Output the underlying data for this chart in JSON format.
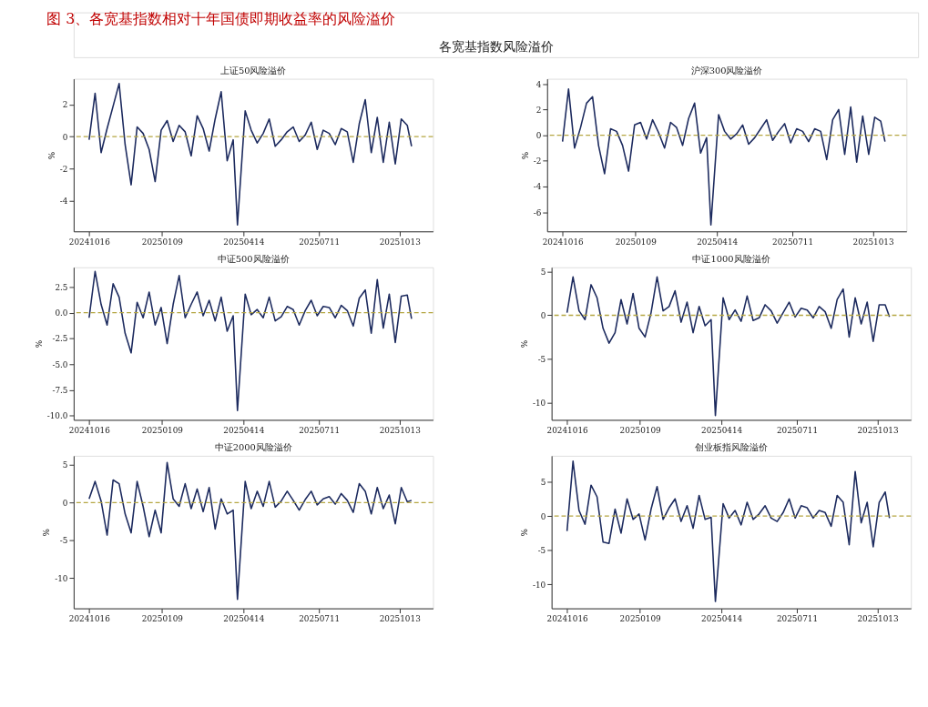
{
  "chart_data": [
    {
      "type": "line",
      "title": "上证50风险溢价",
      "ylabel": "%",
      "grid": false,
      "annotations": [
        "图 3、各宽基指数相对十年国债即期收益率的风险溢价",
        "各宽基指数风险溢价"
      ],
      "x": [
        "2024-10-16",
        "2024-10-23",
        "2024-10-30",
        "2024-11-06",
        "2024-11-13",
        "2024-11-20",
        "2024-11-27",
        "2024-12-04",
        "2024-12-11",
        "2024-12-18",
        "2024-12-25",
        "2025-01-01",
        "2025-01-08",
        "2025-01-15",
        "2025-01-22",
        "2025-01-29",
        "2025-02-05",
        "2025-02-12",
        "2025-02-19",
        "2025-02-26",
        "2025-03-05",
        "2025-03-12",
        "2025-03-19",
        "2025-03-26",
        "2025-04-02",
        "2025-04-07",
        "2025-04-16",
        "2025-04-23",
        "2025-04-30",
        "2025-05-07",
        "2025-05-14",
        "2025-05-21",
        "2025-05-28",
        "2025-06-04",
        "2025-06-11",
        "2025-06-18",
        "2025-06-25",
        "2025-07-02",
        "2025-07-09",
        "2025-07-16",
        "2025-07-23",
        "2025-07-30",
        "2025-08-06",
        "2025-08-13",
        "2025-08-20",
        "2025-08-27",
        "2025-09-03",
        "2025-09-10",
        "2025-09-17",
        "2025-09-24",
        "2025-10-01",
        "2025-10-08",
        "2025-10-15",
        "2025-10-22",
        "2025-10-27"
      ],
      "series": [
        {
          "color": "#1c2a5e",
          "values": [
            -0.2,
            2.7,
            -1.0,
            0.5,
            1.9,
            3.3,
            -0.5,
            -3.0,
            0.6,
            0.2,
            -0.8,
            -2.8,
            0.4,
            1.0,
            -0.3,
            0.7,
            0.3,
            -1.2,
            1.3,
            0.5,
            -0.9,
            1.1,
            2.8,
            -1.5,
            -0.2,
            -5.5,
            1.6,
            0.4,
            -0.4,
            0.2,
            1.1,
            -0.6,
            -0.2,
            0.3,
            0.6,
            -0.3,
            0.1,
            0.9,
            -0.8,
            0.4,
            0.2,
            -0.5,
            0.5,
            0.3,
            -1.6,
            0.8,
            2.3,
            -1.0,
            1.2,
            -1.6,
            0.9,
            -1.7,
            1.1,
            0.7,
            -0.6
          ]
        }
      ],
      "ref_lines": [
        {
          "axis": "y",
          "value": 0,
          "color": "#b5a642",
          "line_style": "dashed"
        }
      ],
      "xlim": [
        "2024-09-28",
        "2025-11-21"
      ],
      "xticks": [
        {
          "value": "2024-10-16",
          "label": "20241016"
        },
        {
          "value": "2025-01-09",
          "label": "20250109"
        },
        {
          "value": "2025-04-14",
          "label": "20250414"
        },
        {
          "value": "2025-07-11",
          "label": "20250711"
        },
        {
          "value": "2025-10-13",
          "label": "20251013"
        }
      ],
      "ylim": [
        -5.9,
        3.6
      ],
      "yticks": [
        -4,
        -2,
        0,
        2
      ]
    },
    {
      "type": "line",
      "title": "沪深300风险溢价",
      "ylabel": "%",
      "grid": false,
      "x": [
        "2024-10-16",
        "2024-10-23",
        "2024-10-30",
        "2024-11-06",
        "2024-11-13",
        "2024-11-20",
        "2024-11-27",
        "2024-12-04",
        "2024-12-11",
        "2024-12-18",
        "2024-12-25",
        "2025-01-01",
        "2025-01-08",
        "2025-01-15",
        "2025-01-22",
        "2025-01-29",
        "2025-02-05",
        "2025-02-12",
        "2025-02-19",
        "2025-02-26",
        "2025-03-05",
        "2025-03-12",
        "2025-03-19",
        "2025-03-26",
        "2025-04-02",
        "2025-04-07",
        "2025-04-16",
        "2025-04-23",
        "2025-04-30",
        "2025-05-07",
        "2025-05-14",
        "2025-05-21",
        "2025-05-28",
        "2025-06-04",
        "2025-06-11",
        "2025-06-18",
        "2025-06-25",
        "2025-07-02",
        "2025-07-09",
        "2025-07-16",
        "2025-07-23",
        "2025-07-30",
        "2025-08-06",
        "2025-08-13",
        "2025-08-20",
        "2025-08-27",
        "2025-09-03",
        "2025-09-10",
        "2025-09-17",
        "2025-09-24",
        "2025-10-01",
        "2025-10-08",
        "2025-10-15",
        "2025-10-22",
        "2025-10-27"
      ],
      "series": [
        {
          "color": "#1c2a5e",
          "values": [
            -0.5,
            3.6,
            -1.0,
            0.6,
            2.5,
            3.0,
            -0.8,
            -3.0,
            0.5,
            0.3,
            -0.8,
            -2.8,
            0.8,
            1.0,
            -0.3,
            1.2,
            0.2,
            -1.0,
            1.0,
            0.6,
            -0.8,
            1.3,
            2.5,
            -1.4,
            -0.2,
            -7.0,
            1.6,
            0.3,
            -0.3,
            0.1,
            0.8,
            -0.7,
            -0.2,
            0.5,
            1.2,
            -0.4,
            0.3,
            0.9,
            -0.6,
            0.5,
            0.3,
            -0.5,
            0.5,
            0.3,
            -1.9,
            1.2,
            2.0,
            -1.5,
            2.2,
            -2.1,
            1.5,
            -1.5,
            1.4,
            1.1,
            -0.5
          ]
        }
      ],
      "ref_lines": [
        {
          "axis": "y",
          "value": 0,
          "color": "#b5a642",
          "line_style": "dashed"
        }
      ],
      "xlim": [
        "2024-09-28",
        "2025-11-21"
      ],
      "xticks": [
        {
          "value": "2024-10-16",
          "label": "20241016"
        },
        {
          "value": "2025-01-09",
          "label": "20250109"
        },
        {
          "value": "2025-04-14",
          "label": "20250414"
        },
        {
          "value": "2025-07-11",
          "label": "20250711"
        },
        {
          "value": "2025-10-13",
          "label": "20251013"
        }
      ],
      "ylim": [
        -7.5,
        4.4
      ],
      "yticks": [
        -6,
        -4,
        -2,
        0,
        2,
        4
      ]
    },
    {
      "type": "line",
      "title": "中证500风险溢价",
      "ylabel": "%",
      "grid": false,
      "x": [
        "2024-10-16",
        "2024-10-23",
        "2024-10-30",
        "2024-11-06",
        "2024-11-13",
        "2024-11-20",
        "2024-11-27",
        "2024-12-04",
        "2024-12-11",
        "2024-12-18",
        "2024-12-25",
        "2025-01-01",
        "2025-01-08",
        "2025-01-15",
        "2025-01-22",
        "2025-01-29",
        "2025-02-05",
        "2025-02-12",
        "2025-02-19",
        "2025-02-26",
        "2025-03-05",
        "2025-03-12",
        "2025-03-19",
        "2025-03-26",
        "2025-04-02",
        "2025-04-07",
        "2025-04-16",
        "2025-04-23",
        "2025-04-30",
        "2025-05-07",
        "2025-05-14",
        "2025-05-21",
        "2025-05-28",
        "2025-06-04",
        "2025-06-11",
        "2025-06-18",
        "2025-06-25",
        "2025-07-02",
        "2025-07-09",
        "2025-07-16",
        "2025-07-23",
        "2025-07-30",
        "2025-08-06",
        "2025-08-13",
        "2025-08-20",
        "2025-08-27",
        "2025-09-03",
        "2025-09-10",
        "2025-09-17",
        "2025-09-24",
        "2025-10-01",
        "2025-10-08",
        "2025-10-15",
        "2025-10-22",
        "2025-10-27"
      ],
      "series": [
        {
          "color": "#1c2a5e",
          "values": [
            -0.5,
            4.0,
            0.8,
            -1.2,
            2.8,
            1.5,
            -2.0,
            -3.9,
            1.0,
            -0.5,
            2.0,
            -1.2,
            0.5,
            -3.0,
            0.8,
            3.6,
            -0.5,
            0.8,
            2.0,
            -0.3,
            1.2,
            -0.8,
            1.5,
            -1.8,
            -0.3,
            -9.5,
            1.8,
            -0.2,
            0.3,
            -0.5,
            1.5,
            -0.8,
            -0.4,
            0.6,
            0.3,
            -1.2,
            0.2,
            1.2,
            -0.3,
            0.6,
            0.5,
            -0.5,
            0.7,
            0.2,
            -1.3,
            1.4,
            2.2,
            -2.0,
            3.2,
            -1.5,
            1.8,
            -2.9,
            1.6,
            1.7,
            -0.6
          ]
        }
      ],
      "ref_lines": [
        {
          "axis": "y",
          "value": 0,
          "color": "#b5a642",
          "line_style": "dashed"
        }
      ],
      "xlim": [
        "2024-09-28",
        "2025-11-21"
      ],
      "xticks": [
        {
          "value": "2024-10-16",
          "label": "20241016"
        },
        {
          "value": "2025-01-09",
          "label": "20250109"
        },
        {
          "value": "2025-04-14",
          "label": "20250414"
        },
        {
          "value": "2025-07-11",
          "label": "20250711"
        },
        {
          "value": "2025-10-13",
          "label": "20251013"
        }
      ],
      "ylim": [
        -10.4,
        4.4
      ],
      "yticks": [
        {
          "value": -10,
          "label": "-10.0"
        },
        {
          "value": -7.5,
          "label": "-7.5"
        },
        {
          "value": -5,
          "label": "-5.0"
        },
        {
          "value": -2.5,
          "label": "-2.5"
        },
        {
          "value": 0,
          "label": "0.0"
        },
        {
          "value": 2.5,
          "label": "2.5"
        }
      ]
    },
    {
      "type": "line",
      "title": "中证1000风险溢价",
      "ylabel": "%",
      "grid": false,
      "x": [
        "2024-10-16",
        "2024-10-23",
        "2024-10-30",
        "2024-11-06",
        "2024-11-13",
        "2024-11-20",
        "2024-11-27",
        "2024-12-04",
        "2024-12-11",
        "2024-12-18",
        "2024-12-25",
        "2025-01-01",
        "2025-01-08",
        "2025-01-15",
        "2025-01-22",
        "2025-01-29",
        "2025-02-05",
        "2025-02-12",
        "2025-02-19",
        "2025-02-26",
        "2025-03-05",
        "2025-03-12",
        "2025-03-19",
        "2025-03-26",
        "2025-04-02",
        "2025-04-07",
        "2025-04-16",
        "2025-04-23",
        "2025-04-30",
        "2025-05-07",
        "2025-05-14",
        "2025-05-21",
        "2025-05-28",
        "2025-06-04",
        "2025-06-11",
        "2025-06-18",
        "2025-06-25",
        "2025-07-02",
        "2025-07-09",
        "2025-07-16",
        "2025-07-23",
        "2025-07-30",
        "2025-08-06",
        "2025-08-13",
        "2025-08-20",
        "2025-08-27",
        "2025-09-03",
        "2025-09-10",
        "2025-09-17",
        "2025-09-24",
        "2025-10-01",
        "2025-10-08",
        "2025-10-15",
        "2025-10-22",
        "2025-10-27"
      ],
      "series": [
        {
          "color": "#1c2a5e",
          "values": [
            0.3,
            4.4,
            0.5,
            -0.5,
            3.5,
            2.0,
            -1.5,
            -3.2,
            -2.0,
            1.8,
            -1.0,
            2.5,
            -1.5,
            -2.5,
            0.3,
            4.4,
            0.5,
            1.0,
            2.8,
            -0.8,
            1.5,
            -2.0,
            1.0,
            -1.2,
            -0.5,
            -11.5,
            2.0,
            -0.5,
            0.6,
            -0.7,
            2.2,
            -0.6,
            -0.3,
            1.2,
            0.5,
            -0.9,
            0.3,
            1.5,
            -0.2,
            0.8,
            0.6,
            -0.3,
            1.0,
            0.4,
            -1.5,
            1.8,
            3.0,
            -2.5,
            2.0,
            -1.0,
            1.5,
            -3.0,
            1.2,
            1.2,
            -0.2
          ]
        }
      ],
      "ref_lines": [
        {
          "axis": "y",
          "value": 0,
          "color": "#b5a642",
          "line_style": "dashed"
        }
      ],
      "xlim": [
        "2024-09-28",
        "2025-11-21"
      ],
      "xticks": [
        {
          "value": "2024-10-16",
          "label": "20241016"
        },
        {
          "value": "2025-01-09",
          "label": "20250109"
        },
        {
          "value": "2025-04-14",
          "label": "20250414"
        },
        {
          "value": "2025-07-11",
          "label": "20250711"
        },
        {
          "value": "2025-10-13",
          "label": "20251013"
        }
      ],
      "ylim": [
        -12,
        5.5
      ],
      "yticks": [
        -10,
        -5,
        0,
        5
      ]
    },
    {
      "type": "line",
      "title": "中证2000风险溢价",
      "ylabel": "%",
      "grid": false,
      "x": [
        "2024-10-16",
        "2024-10-23",
        "2024-10-30",
        "2024-11-06",
        "2024-11-13",
        "2024-11-20",
        "2024-11-27",
        "2024-12-04",
        "2024-12-11",
        "2024-12-18",
        "2024-12-25",
        "2025-01-01",
        "2025-01-08",
        "2025-01-15",
        "2025-01-22",
        "2025-01-29",
        "2025-02-05",
        "2025-02-12",
        "2025-02-19",
        "2025-02-26",
        "2025-03-05",
        "2025-03-12",
        "2025-03-19",
        "2025-03-26",
        "2025-04-02",
        "2025-04-07",
        "2025-04-16",
        "2025-04-23",
        "2025-04-30",
        "2025-05-07",
        "2025-05-14",
        "2025-05-21",
        "2025-05-28",
        "2025-06-04",
        "2025-06-11",
        "2025-06-18",
        "2025-06-25",
        "2025-07-02",
        "2025-07-09",
        "2025-07-16",
        "2025-07-23",
        "2025-07-30",
        "2025-08-06",
        "2025-08-13",
        "2025-08-20",
        "2025-08-27",
        "2025-09-03",
        "2025-09-10",
        "2025-09-17",
        "2025-09-24",
        "2025-10-01",
        "2025-10-08",
        "2025-10-15",
        "2025-10-22",
        "2025-10-27"
      ],
      "series": [
        {
          "color": "#1c2a5e",
          "values": [
            0.5,
            2.8,
            0.2,
            -4.3,
            3.0,
            2.5,
            -1.5,
            -4.0,
            2.8,
            -0.5,
            -4.5,
            -1.0,
            -4.0,
            5.3,
            0.5,
            -0.5,
            2.5,
            -0.8,
            1.8,
            -1.2,
            2.0,
            -3.5,
            0.5,
            -1.5,
            -1.0,
            -12.8,
            2.8,
            -0.8,
            1.5,
            -0.5,
            2.8,
            -0.6,
            0.2,
            1.5,
            0.3,
            -1.0,
            0.4,
            1.5,
            -0.3,
            0.5,
            0.8,
            -0.2,
            1.2,
            0.3,
            -1.3,
            2.5,
            1.5,
            -1.5,
            2.0,
            -0.8,
            1.0,
            -2.8,
            2.0,
            0.1,
            0.3
          ]
        }
      ],
      "ref_lines": [
        {
          "axis": "y",
          "value": 0,
          "color": "#b5a642",
          "line_style": "dashed"
        }
      ],
      "xlim": [
        "2024-09-28",
        "2025-11-21"
      ],
      "xticks": [
        {
          "value": "2024-10-16",
          "label": "20241016"
        },
        {
          "value": "2025-01-09",
          "label": "20250109"
        },
        {
          "value": "2025-04-14",
          "label": "20250414"
        },
        {
          "value": "2025-07-11",
          "label": "20250711"
        },
        {
          "value": "2025-10-13",
          "label": "20251013"
        }
      ],
      "ylim": [
        -14,
        6.2
      ],
      "yticks": [
        -10,
        -5,
        0,
        5
      ]
    },
    {
      "type": "line",
      "title": "创业板指风险溢价",
      "ylabel": "%",
      "grid": false,
      "x": [
        "2024-10-16",
        "2024-10-23",
        "2024-10-30",
        "2024-11-06",
        "2024-11-13",
        "2024-11-20",
        "2024-11-27",
        "2024-12-04",
        "2024-12-11",
        "2024-12-18",
        "2024-12-25",
        "2025-01-01",
        "2025-01-08",
        "2025-01-15",
        "2025-01-22",
        "2025-01-29",
        "2025-02-05",
        "2025-02-12",
        "2025-02-19",
        "2025-02-26",
        "2025-03-05",
        "2025-03-12",
        "2025-03-19",
        "2025-03-26",
        "2025-04-02",
        "2025-04-07",
        "2025-04-16",
        "2025-04-23",
        "2025-04-30",
        "2025-05-07",
        "2025-05-14",
        "2025-05-21",
        "2025-05-28",
        "2025-06-04",
        "2025-06-11",
        "2025-06-18",
        "2025-06-25",
        "2025-07-02",
        "2025-07-09",
        "2025-07-16",
        "2025-07-23",
        "2025-07-30",
        "2025-08-06",
        "2025-08-13",
        "2025-08-20",
        "2025-08-27",
        "2025-09-03",
        "2025-09-10",
        "2025-09-17",
        "2025-09-24",
        "2025-10-01",
        "2025-10-08",
        "2025-10-15",
        "2025-10-22",
        "2025-10-27"
      ],
      "series": [
        {
          "color": "#1c2a5e",
          "values": [
            -2.2,
            8.0,
            0.8,
            -1.2,
            4.5,
            2.8,
            -3.8,
            -4.0,
            1.0,
            -2.5,
            2.5,
            -0.5,
            0.3,
            -3.5,
            1.0,
            4.3,
            -0.5,
            1.2,
            2.5,
            -0.8,
            1.5,
            -1.8,
            3.0,
            -0.5,
            -0.2,
            -12.5,
            1.8,
            -0.3,
            0.8,
            -1.3,
            2.0,
            -0.5,
            0.3,
            1.5,
            -0.3,
            -0.8,
            0.5,
            2.5,
            -0.3,
            1.5,
            1.2,
            -0.3,
            0.8,
            0.5,
            -1.5,
            3.0,
            2.0,
            -4.2,
            6.5,
            -1.0,
            2.0,
            -4.5,
            2.0,
            3.5,
            -0.3
          ]
        }
      ],
      "ref_lines": [
        {
          "axis": "y",
          "value": 0,
          "color": "#b5a642",
          "line_style": "dashed"
        }
      ],
      "xlim": [
        "2024-09-28",
        "2025-11-21"
      ],
      "xticks": [
        {
          "value": "2024-10-16",
          "label": "20241016"
        },
        {
          "value": "2025-01-09",
          "label": "20250109"
        },
        {
          "value": "2025-04-14",
          "label": "20250414"
        },
        {
          "value": "2025-07-11",
          "label": "20250711"
        },
        {
          "value": "2025-10-13",
          "label": "20251013"
        }
      ],
      "ylim": [
        -13.5,
        8.8
      ],
      "yticks": [
        -10,
        -5,
        0,
        5
      ]
    }
  ]
}
